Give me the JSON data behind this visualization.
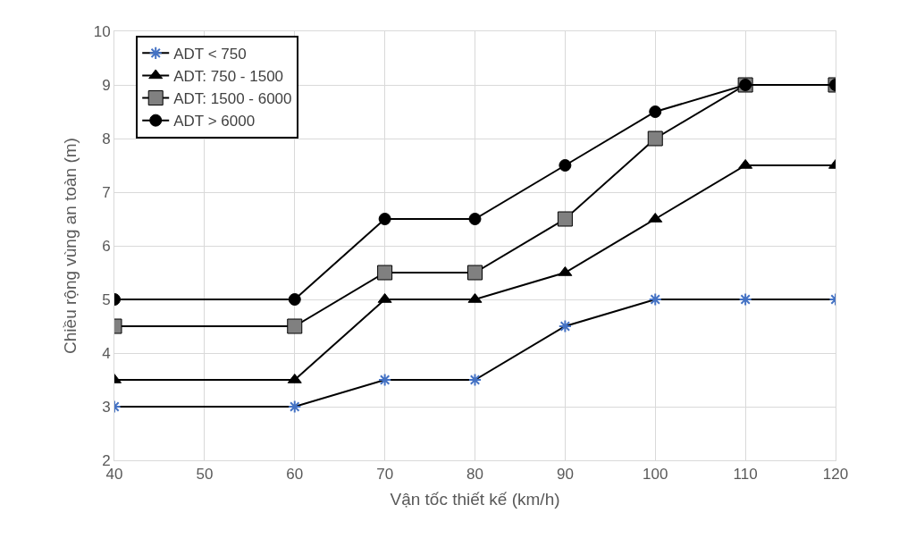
{
  "chart_data": {
    "type": "line",
    "xlabel": "Vận tốc thiết kế (km/h)",
    "ylabel": "Chiều rộng vùng an toàn (m)",
    "x": [
      40,
      60,
      70,
      80,
      90,
      100,
      110,
      120
    ],
    "series": [
      {
        "name": "ADT < 750",
        "color": "#4472c4",
        "marker": "cross",
        "values": [
          3,
          3,
          3.5,
          3.5,
          4.5,
          5,
          5,
          5
        ]
      },
      {
        "name": "ADT: 750 - 1500",
        "color": "#000000",
        "marker": "triangle",
        "values": [
          3.5,
          3.5,
          5,
          5,
          5.5,
          6.5,
          7.5,
          7.5
        ]
      },
      {
        "name": "ADT: 1500 - 6000",
        "color": "#808080",
        "marker": "square",
        "values": [
          4.5,
          4.5,
          5.5,
          5.5,
          6.5,
          8,
          9,
          9
        ]
      },
      {
        "name": "ADT > 6000",
        "color": "#000000",
        "marker": "circle",
        "values": [
          5,
          5,
          6.5,
          6.5,
          7.5,
          8.5,
          9,
          9
        ]
      }
    ],
    "xlim": [
      40,
      120
    ],
    "xticks": [
      40,
      50,
      60,
      70,
      80,
      90,
      100,
      110,
      120
    ],
    "ylim": [
      2,
      10
    ],
    "yticks": [
      2,
      3,
      4,
      5,
      6,
      7,
      8,
      9,
      10
    ],
    "grid": true,
    "legend": "top left",
    "line_style": "solid"
  }
}
